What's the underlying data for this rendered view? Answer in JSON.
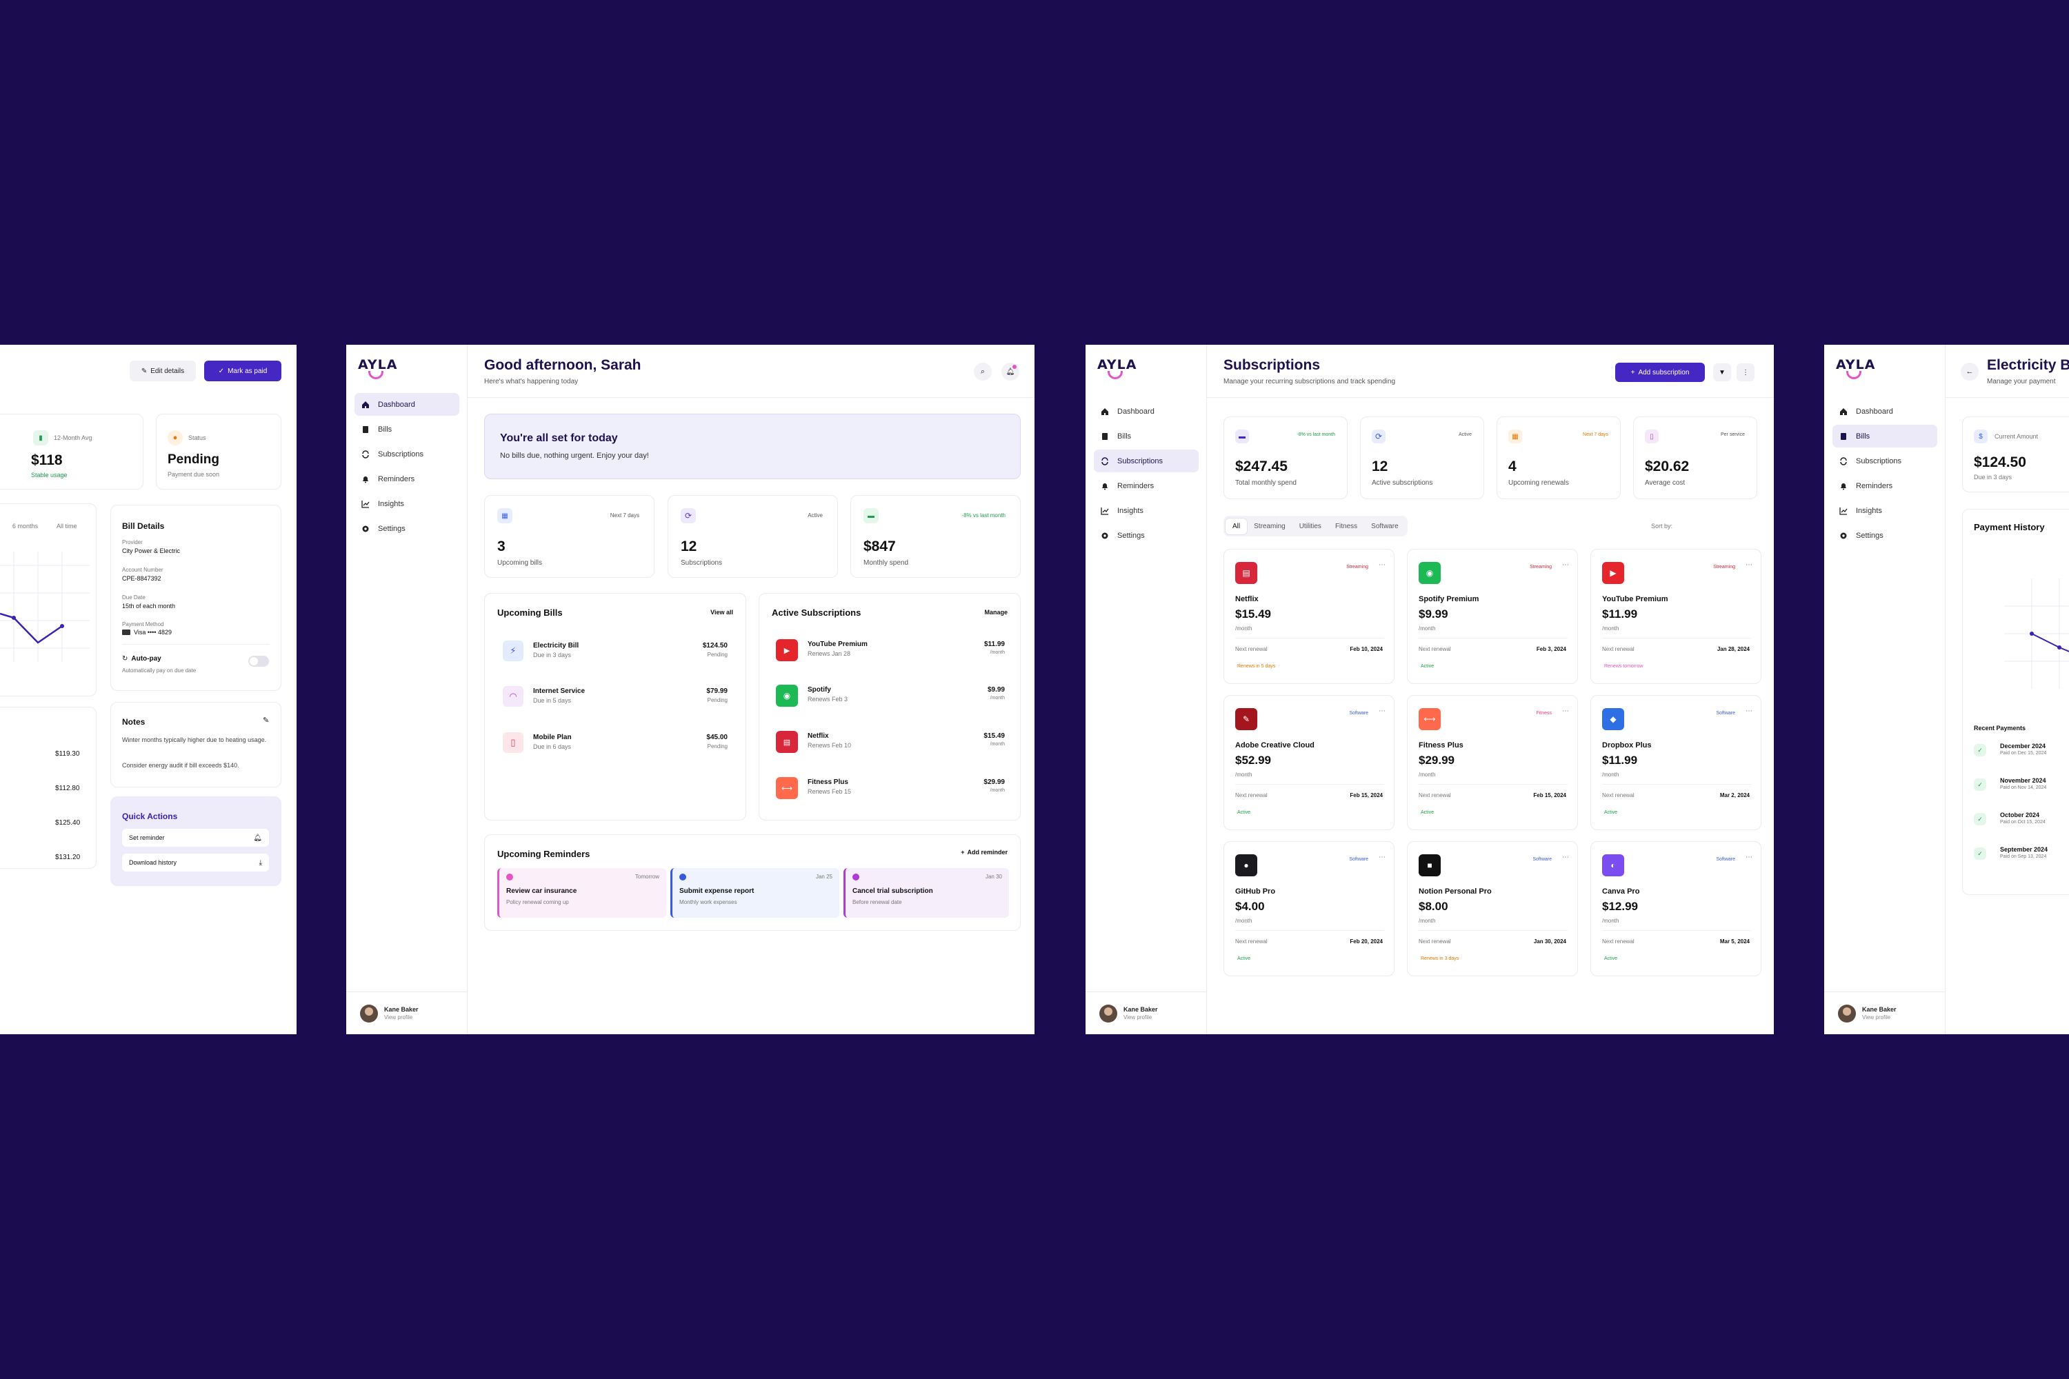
{
  "brand": {
    "logo": "AYLA",
    "accent": "#4527c4",
    "accent_pink": "#e554c6",
    "background": "#1b0c4f"
  },
  "sidebar": {
    "items": [
      {
        "label": "Dashboard",
        "icon": "home-icon"
      },
      {
        "label": "Bills",
        "icon": "receipt-icon"
      },
      {
        "label": "Subscriptions",
        "icon": "repeat-icon"
      },
      {
        "label": "Reminders",
        "icon": "bell-icon"
      },
      {
        "label": "Insights",
        "icon": "chart-icon"
      },
      {
        "label": "Settings",
        "icon": "gear-icon"
      }
    ],
    "profile": {
      "name": "Kane Baker",
      "sub": "View profile"
    }
  },
  "bill_detail": {
    "edit_label": "Edit details",
    "paid_label": "Mark as paid",
    "avg": {
      "label": "12-Month Avg",
      "value": "$118",
      "note": "Stable usage"
    },
    "status": {
      "label": "Status",
      "value": "Pending",
      "note": "Payment due soon"
    },
    "chart_tabs": [
      "6 months",
      "All time"
    ],
    "details": {
      "title": "Bill Details",
      "provider_label": "Provider",
      "provider": "City Power & Electric",
      "account_label": "Account Number",
      "account": "CPE-8847392",
      "due_label": "Due Date",
      "due": "15th of each month",
      "method_label": "Payment Method",
      "method": "Visa •••• 4829",
      "autopay": "Auto-pay",
      "autopay_note": "Automatically pay on due date"
    },
    "amounts": [
      "$119.30",
      "$112.80",
      "$125.40",
      "$131.20"
    ],
    "notes": {
      "title": "Notes",
      "line1": "Winter months typically higher due to heating usage.",
      "line2": "Consider energy audit if bill exceeds $140."
    },
    "quick": {
      "title": "Quick Actions",
      "reminder": "Set reminder",
      "history": "Download history"
    }
  },
  "dashboard": {
    "greeting": "Good afternoon, Sarah",
    "subtitle": "Here's what's happening today",
    "banner": {
      "title": "You're all set for today",
      "text": "No bills due, nothing urgent. Enjoy your day!"
    },
    "stats": [
      {
        "badge": "Next 7 days",
        "value": "3",
        "label": "Upcoming bills"
      },
      {
        "badge": "Active",
        "value": "12",
        "label": "Subscriptions"
      },
      {
        "badge": "-8% vs last month",
        "value": "$847",
        "label": "Monthly spend"
      }
    ],
    "bills": {
      "title": "Upcoming Bills",
      "action": "View all",
      "items": [
        {
          "name": "Electricity Bill",
          "due": "Due in 3 days",
          "amount": "$124.50",
          "status": "Pending"
        },
        {
          "name": "Internet Service",
          "due": "Due in 5 days",
          "amount": "$79.99",
          "status": "Pending"
        },
        {
          "name": "Mobile Plan",
          "due": "Due in 6 days",
          "amount": "$45.00",
          "status": "Pending"
        }
      ]
    },
    "subs": {
      "title": "Active Subscriptions",
      "action": "Manage",
      "items": [
        {
          "name": "YouTube Premium",
          "renew": "Renews Jan 28",
          "amount": "$11.99",
          "per": "/month"
        },
        {
          "name": "Spotify",
          "renew": "Renews Feb 3",
          "amount": "$9.99",
          "per": "/month"
        },
        {
          "name": "Netflix",
          "renew": "Renews Feb 10",
          "amount": "$15.49",
          "per": "/month"
        },
        {
          "name": "Fitness Plus",
          "renew": "Renews Feb 15",
          "amount": "$29.99",
          "per": "/month"
        }
      ]
    },
    "reminders": {
      "title": "Upcoming Reminders",
      "action": "Add reminder",
      "items": [
        {
          "date": "Tomorrow",
          "title": "Review car insurance",
          "note": "Policy renewal coming up"
        },
        {
          "date": "Jan 25",
          "title": "Submit expense report",
          "note": "Monthly work expenses"
        },
        {
          "date": "Jan 30",
          "title": "Cancel trial subscription",
          "note": "Before renewal date"
        }
      ]
    }
  },
  "subscriptions": {
    "title": "Subscriptions",
    "subtitle": "Manage your recurring subscriptions and track spending",
    "add_label": "Add subscription",
    "stats": [
      {
        "badge": "-8% vs last month",
        "value": "$247.45",
        "label": "Total monthly spend"
      },
      {
        "badge": "Active",
        "value": "12",
        "label": "Active subscriptions"
      },
      {
        "badge": "Next 7 days",
        "value": "4",
        "label": "Upcoming renewals"
      },
      {
        "badge": "Per service",
        "value": "$20.62",
        "label": "Average cost"
      }
    ],
    "tabs": [
      "All",
      "Streaming",
      "Utilities",
      "Fitness",
      "Software"
    ],
    "sort_label": "Sort by:",
    "per": "/month",
    "renewal_label": "Next renewal",
    "cards": [
      {
        "name": "Netflix",
        "tag": "Streaming",
        "price": "$15.49",
        "date": "Feb 10, 2024",
        "status": "Renews in 5 days"
      },
      {
        "name": "Spotify Premium",
        "tag": "Streaming",
        "price": "$9.99",
        "date": "Feb 3, 2024",
        "status": "Active"
      },
      {
        "name": "YouTube Premium",
        "tag": "Streaming",
        "price": "$11.99",
        "date": "Jan 28, 2024",
        "status": "Renews tomorrow"
      },
      {
        "name": "Adobe Creative Cloud",
        "tag": "Software",
        "price": "$52.99",
        "date": "Feb 15, 2024",
        "status": "Active"
      },
      {
        "name": "Fitness Plus",
        "tag": "Fitness",
        "price": "$29.99",
        "date": "Feb 15, 2024",
        "status": "Active"
      },
      {
        "name": "Dropbox Plus",
        "tag": "Software",
        "price": "$11.99",
        "date": "Mar 2, 2024",
        "status": "Active"
      },
      {
        "name": "GitHub Pro",
        "tag": "Software",
        "price": "$4.00",
        "date": "Feb 20, 2024",
        "status": "Active"
      },
      {
        "name": "Notion Personal Pro",
        "tag": "Software",
        "price": "$8.00",
        "date": "Jan 30, 2024",
        "status": "Renews in 3 days"
      },
      {
        "name": "Canva Pro",
        "tag": "Software",
        "price": "$12.99",
        "date": "Mar 5, 2024",
        "status": "Active"
      }
    ]
  },
  "electricity": {
    "title": "Electricity B",
    "subtitle": "Manage your payment",
    "amount_label": "Current Amount",
    "amount": "$124.50",
    "due": "Due in 3 days",
    "history_title": "Payment History",
    "recent_title": "Recent Payments",
    "payments": [
      {
        "month": "December 2024",
        "paid": "Paid on Dec 15, 2024"
      },
      {
        "month": "November 2024",
        "paid": "Paid on Nov 14, 2024"
      },
      {
        "month": "October 2024",
        "paid": "Paid on Oct 15, 2024"
      },
      {
        "month": "September 2024",
        "paid": "Paid on Sep 13, 2024"
      }
    ]
  }
}
